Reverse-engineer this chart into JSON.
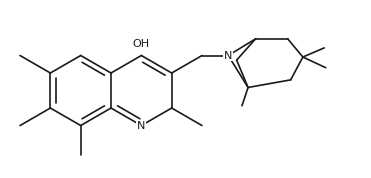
{
  "background": "#ffffff",
  "line_color": "#1a1a1a",
  "line_width": 1.2,
  "font_size": 7.5,
  "figsize": [
    3.71,
    1.78
  ],
  "dpi": 100,
  "xlim": [
    0,
    11.5
  ],
  "ylim": [
    0,
    5.8
  ]
}
